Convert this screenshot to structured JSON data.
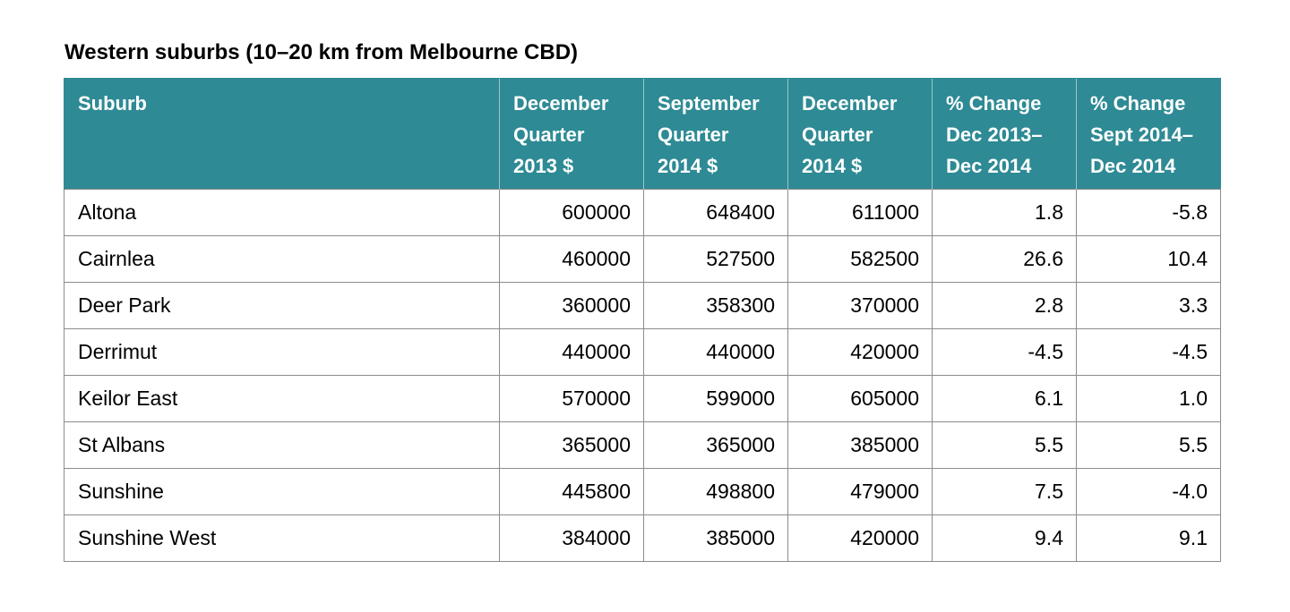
{
  "caption": "Western suburbs (10–20 km from Melbourne CBD)",
  "headers": [
    [
      "Suburb"
    ],
    [
      "December",
      "Quarter",
      "2013 $"
    ],
    [
      "September",
      "Quarter",
      "2014 $"
    ],
    [
      "December",
      "Quarter",
      "2014 $"
    ],
    [
      "% Change",
      "Dec 2013–",
      "Dec 2014"
    ],
    [
      "% Change",
      "Sept 2014–",
      "Dec 2014"
    ]
  ],
  "rows": [
    [
      "Altona",
      "600000",
      "648400",
      "611000",
      "1.8",
      "-5.8"
    ],
    [
      "Cairnlea",
      "460000",
      "527500",
      "582500",
      "26.6",
      "10.4"
    ],
    [
      "Deer Park",
      "360000",
      "358300",
      "370000",
      "2.8",
      "3.3"
    ],
    [
      "Derrimut",
      "440000",
      "440000",
      "420000",
      "-4.5",
      "-4.5"
    ],
    [
      "Keilor East",
      "570000",
      "599000",
      "605000",
      "6.1",
      "1.0"
    ],
    [
      "St Albans",
      "365000",
      "365000",
      "385000",
      "5.5",
      "5.5"
    ],
    [
      "Sunshine",
      "445800",
      "498800",
      "479000",
      "7.5",
      "-4.0"
    ],
    [
      "Sunshine West",
      "384000",
      "385000",
      "420000",
      "9.4",
      "9.1"
    ]
  ],
  "colors": {
    "header_background": "#2e8a94",
    "header_text": "#ffffff",
    "grid_line": "#8c8c8c"
  }
}
